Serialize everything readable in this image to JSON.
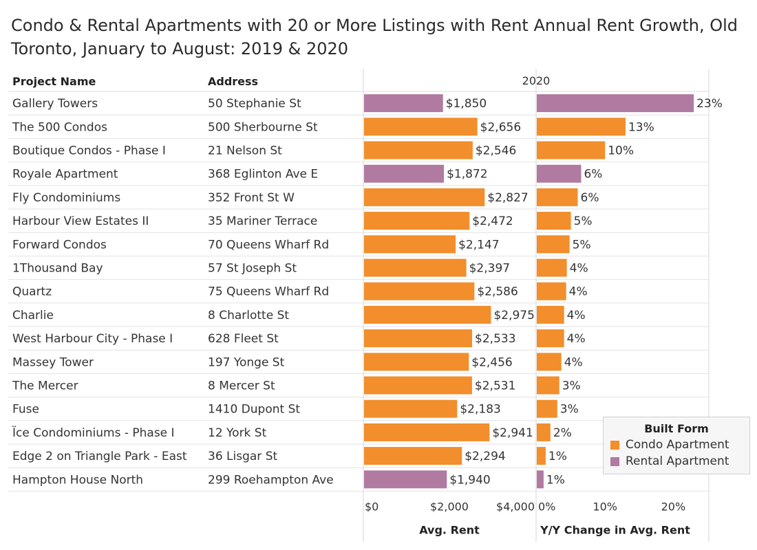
{
  "title": "Condo & Rental Apartments with 20 or More Listings with Rent Annual Rent Growth, Old Toronto, January to August: 2019 & 2020",
  "colors": {
    "condo": "#F28E2B",
    "rental": "#B07AA1"
  },
  "chart_data": {
    "type": "bar",
    "title": "Condo & Rental Apartments with 20 or More Listings with Rent Annual Rent Growth, Old Toronto, January to August: 2019 & 2020",
    "year_header": "2020",
    "columns": {
      "project": "Project Name",
      "address": "Address"
    },
    "rows": [
      {
        "project": "Gallery Towers",
        "address": "50 Stephanie St",
        "rent": 1850,
        "rent_label": "$1,850",
        "yoy": 23,
        "yoy_label": "23%",
        "form": "rental"
      },
      {
        "project": "The 500 Condos",
        "address": "500 Sherbourne St",
        "rent": 2656,
        "rent_label": "$2,656",
        "yoy": 13,
        "yoy_label": "13%",
        "form": "condo"
      },
      {
        "project": "Boutique Condos - Phase I",
        "address": "21 Nelson St",
        "rent": 2546,
        "rent_label": "$2,546",
        "yoy": 10,
        "yoy_label": "10%",
        "form": "condo"
      },
      {
        "project": "Royale Apartment",
        "address": "368 Eglinton Ave E",
        "rent": 1872,
        "rent_label": "$1,872",
        "yoy": 6.5,
        "yoy_label": "6%",
        "form": "rental"
      },
      {
        "project": "Fly Condominiums",
        "address": "352 Front St W",
        "rent": 2827,
        "rent_label": "$2,827",
        "yoy": 6,
        "yoy_label": "6%",
        "form": "condo"
      },
      {
        "project": "Harbour View Estates II",
        "address": "35 Mariner Terrace",
        "rent": 2472,
        "rent_label": "$2,472",
        "yoy": 5,
        "yoy_label": "5%",
        "form": "condo"
      },
      {
        "project": "Forward Condos",
        "address": "70 Queens Wharf Rd",
        "rent": 2147,
        "rent_label": "$2,147",
        "yoy": 4.8,
        "yoy_label": "5%",
        "form": "condo"
      },
      {
        "project": "1Thousand Bay",
        "address": "57 St Joseph St",
        "rent": 2397,
        "rent_label": "$2,397",
        "yoy": 4.4,
        "yoy_label": "4%",
        "form": "condo"
      },
      {
        "project": "Quartz",
        "address": "75 Queens Wharf Rd",
        "rent": 2586,
        "rent_label": "$2,586",
        "yoy": 4.3,
        "yoy_label": "4%",
        "form": "condo"
      },
      {
        "project": "Charlie",
        "address": "8 Charlotte St",
        "rent": 2975,
        "rent_label": "$2,975",
        "yoy": 4,
        "yoy_label": "4%",
        "form": "condo"
      },
      {
        "project": "West Harbour City - Phase I",
        "address": "628 Fleet St",
        "rent": 2533,
        "rent_label": "$2,533",
        "yoy": 4,
        "yoy_label": "4%",
        "form": "condo"
      },
      {
        "project": "Massey Tower",
        "address": "197 Yonge St",
        "rent": 2456,
        "rent_label": "$2,456",
        "yoy": 3.6,
        "yoy_label": "4%",
        "form": "condo"
      },
      {
        "project": "The Mercer",
        "address": "8 Mercer St",
        "rent": 2531,
        "rent_label": "$2,531",
        "yoy": 3.3,
        "yoy_label": "3%",
        "form": "condo"
      },
      {
        "project": "Fuse",
        "address": "1410 Dupont St",
        "rent": 2183,
        "rent_label": "$2,183",
        "yoy": 3,
        "yoy_label": "3%",
        "form": "condo"
      },
      {
        "project": "Ïce Condominiums - Phase I",
        "address": "12 York St",
        "rent": 2941,
        "rent_label": "$2,941",
        "yoy": 2,
        "yoy_label": "2%",
        "form": "condo"
      },
      {
        "project": "Edge 2 on Triangle Park - East",
        "address": "36 Lisgar St",
        "rent": 2294,
        "rent_label": "$2,294",
        "yoy": 1.3,
        "yoy_label": "1%",
        "form": "condo"
      },
      {
        "project": "Hampton House North",
        "address": "299 Roehampton Ave",
        "rent": 1940,
        "rent_label": "$1,940",
        "yoy": 1,
        "yoy_label": "1%",
        "form": "rental"
      }
    ],
    "rent_axis": {
      "title": "Avg. Rent",
      "range": [
        0,
        4000
      ],
      "ticks": [
        "$0",
        "$2,000",
        "$4,000"
      ]
    },
    "yoy_axis": {
      "title": "Y/Y Change in Avg. Rent",
      "range": [
        0,
        25
      ],
      "unit": "%",
      "ticks": [
        "0%",
        "10%",
        "20%"
      ]
    },
    "legend": {
      "title": "Built Form",
      "placement": "bottom-right",
      "items": [
        {
          "key": "condo",
          "label": "Condo Apartment"
        },
        {
          "key": "rental",
          "label": "Rental Apartment"
        }
      ]
    }
  }
}
